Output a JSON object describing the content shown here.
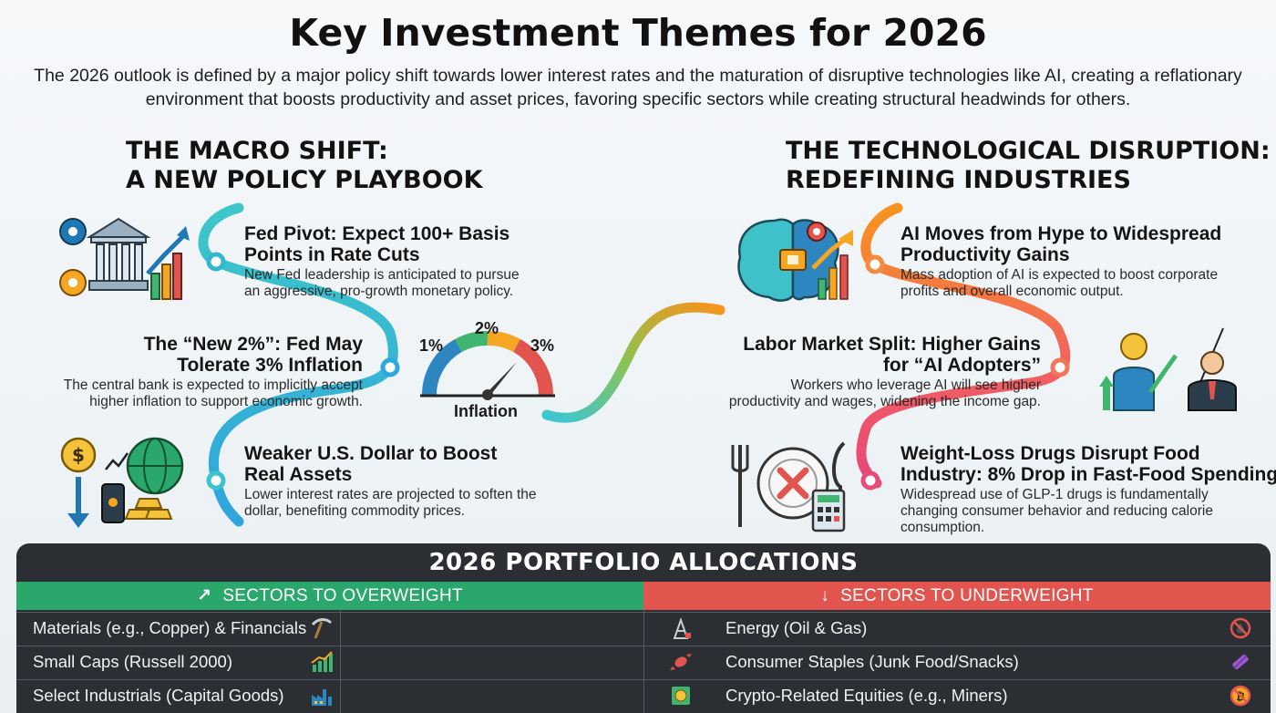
{
  "header": {
    "title": "Key Investment Themes for 2026",
    "subtitle": "The 2026 outlook is defined by a major policy shift towards lower interest rates and the maturation of disruptive technologies like AI, creating a reflationary environment that boosts productivity and asset prices, favoring specific sectors while creating structural headwinds for others."
  },
  "macro": {
    "heading_line1": "THE MACRO SHIFT:",
    "heading_line2": "A NEW POLICY PLAYBOOK",
    "items": [
      {
        "title_line1": "Fed Pivot: Expect 100+ Basis",
        "title_line2": "Points in Rate Cuts",
        "desc_line1": "New Fed leadership is anticipated to pursue",
        "desc_line2": "an aggressive, pro-growth monetary policy.",
        "icon": "bank-gears-growth-icon"
      },
      {
        "title_line1": "The “New 2%”: Fed May",
        "title_line2": "Tolerate 3% Inflation",
        "desc_line1": "The central bank is expected to implicitly accept",
        "desc_line2": "higher inflation to support economic growth.",
        "icon": "inflation-gauge-icon"
      },
      {
        "title_line1": "Weaker U.S. Dollar to Boost",
        "title_line2": "Real Assets",
        "desc_line1": "Lower interest rates are projected to soften the",
        "desc_line2": "dollar, benefiting commodity prices.",
        "icon": "dollar-globe-gold-icon"
      }
    ],
    "gauge": {
      "label_1": "1%",
      "label_2": "2%",
      "label_3": "3%",
      "caption": "Inflation"
    }
  },
  "tech": {
    "heading_line1": "THE TECHNOLOGICAL DISRUPTION:",
    "heading_line2": "REDEFINING INDUSTRIES",
    "items": [
      {
        "title_line1": "AI Moves from Hype to Widespread",
        "title_line2": "Productivity Gains",
        "desc_line1": "Mass adoption of AI is expected to boost corporate",
        "desc_line2": "profits and overall economic output.",
        "icon": "ai-brain-chart-icon"
      },
      {
        "title_line1": "Labor Market Split: Higher Gains",
        "title_line2": "for “AI Adopters”",
        "desc_line1": "Workers who leverage AI will see higher",
        "desc_line2": "productivity and wages, widening the income gap.",
        "icon": "workers-split-icon"
      },
      {
        "title_line1": "Weight-Loss Drugs Disrupt Food",
        "title_line2": "Industry: 8% Drop in Fast-Food Spending",
        "desc_line1": "Widespread use of GLP-1 drugs is fundamentally",
        "desc_line2": "changing consumer behavior and reducing calorie",
        "desc_line3": "consumption.",
        "icon": "empty-plate-icon"
      }
    ]
  },
  "portfolio": {
    "title": "2026 PORTFOLIO ALLOCATIONS",
    "overweight_label": "SECTORS TO OVERWEIGHT",
    "underweight_label": "SECTORS TO UNDERWEIGHT",
    "overweight": [
      {
        "label": "Materials (e.g., Copper) & Financials",
        "icon": "pickaxe-icon"
      },
      {
        "label": "Small Caps (Russell 2000)",
        "icon": "bar-chart-up-icon"
      },
      {
        "label": "Select Industrials (Capital Goods)",
        "icon": "factory-icon"
      }
    ],
    "underweight": [
      {
        "label": "Energy (Oil & Gas)",
        "icon": "no-oil-icon",
        "left_icon": "oil-rig-icon"
      },
      {
        "label": "Consumer Staples (Junk Food/Snacks)",
        "icon": "candy-bar-icon",
        "left_icon": "candy-icon"
      },
      {
        "label": "Crypto-Related Equities (e.g., Miners)",
        "icon": "no-bitcoin-icon",
        "left_icon": "chip-coin-icon"
      }
    ],
    "colors": {
      "overweight": "#2aa76a",
      "underweight": "#e2554f",
      "panel": "#2b2f33"
    }
  }
}
